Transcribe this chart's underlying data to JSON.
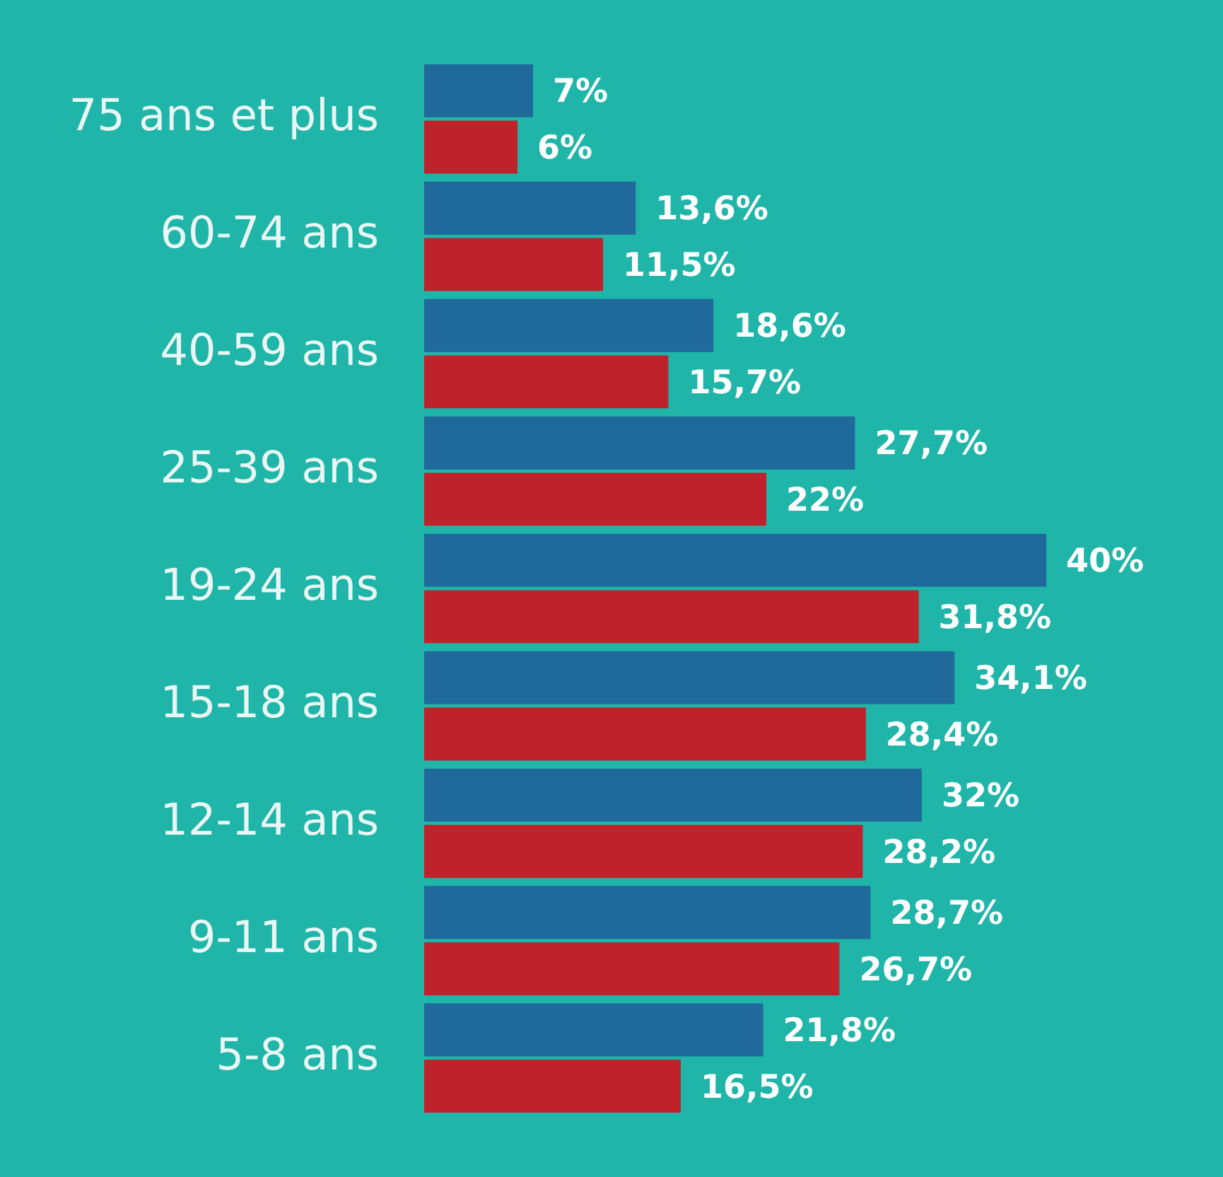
{
  "chart_data": {
    "type": "bar",
    "orientation": "horizontal",
    "categories": [
      "75 ans et plus",
      "60-74 ans",
      "40-59 ans",
      "25-39 ans",
      "19-24 ans",
      "15-18 ans",
      "12-14 ans",
      "9-11 ans",
      "5-8 ans"
    ],
    "series": [
      {
        "color": "#1f6a9a",
        "values": [
          7,
          13.6,
          18.6,
          27.7,
          40,
          34.1,
          32,
          28.7,
          21.8
        ],
        "value_labels": [
          "7%",
          "13,6%",
          "18,6%",
          "27,7%",
          "40%",
          "34,1%",
          "32%",
          "28,7%",
          "21,8%"
        ]
      },
      {
        "color": "#c0222b",
        "values": [
          6,
          11.5,
          15.7,
          22,
          31.8,
          28.4,
          28.2,
          26.7,
          16.5
        ],
        "value_labels": [
          "6%",
          "11,5%",
          "15,7%",
          "22%",
          "31,8%",
          "28,4%",
          "28,2%",
          "26,7%",
          "16,5%"
        ]
      }
    ],
    "tick_labels": "y",
    "grid": false,
    "legend": false
  }
}
